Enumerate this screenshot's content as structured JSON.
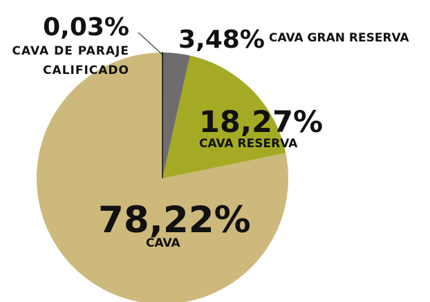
{
  "chart_data": {
    "type": "pie",
    "categories": [
      "CAVA DE PARAJE CALIFICADO",
      "CAVA GRAN RESERVA",
      "CAVA RESERVA",
      "CAVA"
    ],
    "values": [
      0.03,
      3.48,
      18.27,
      78.22
    ],
    "value_labels": [
      "0,03%",
      "3,48%",
      "18,27%",
      "78,22%"
    ],
    "colors": [
      "#1a1a1a",
      "#6e6d6d",
      "#a5aa24",
      "#cdb97b"
    ]
  }
}
